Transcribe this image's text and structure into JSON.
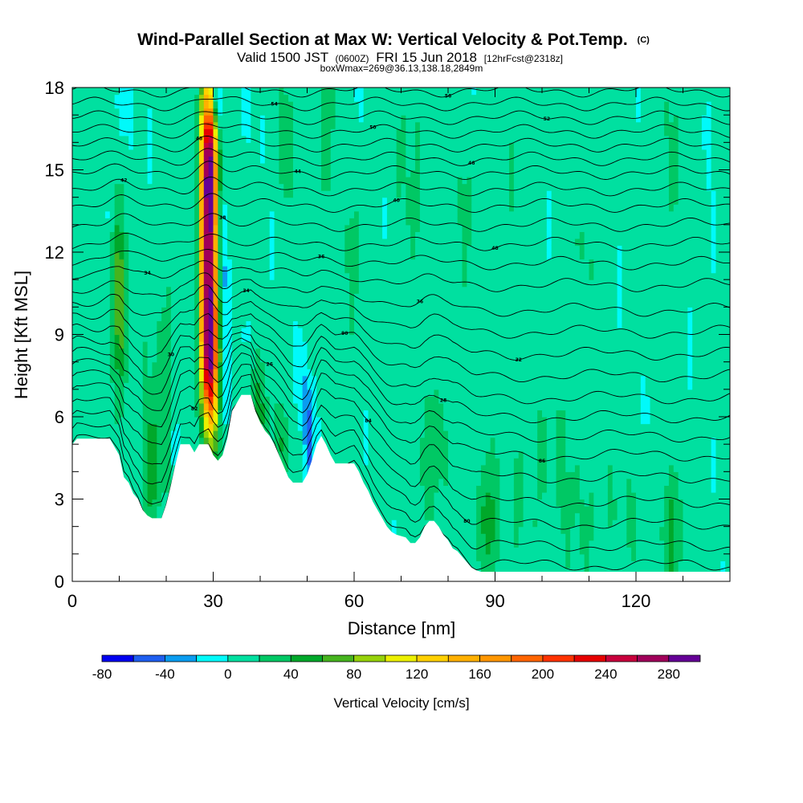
{
  "title": {
    "main": "Wind-Parallel Section at Max W: Vertical Velocity & Pot.Temp.",
    "copyright": "(C)",
    "valid_prefix": "Valid 1500 JST",
    "valid_utc": "(0600Z)",
    "valid_date": "FRI 15 Jun 2018",
    "forecast": "[12hrFcst@2318z]",
    "box_info": "boxWmax=269@36.13,138.18,2849m"
  },
  "colors": {
    "terrain": "#ffffff",
    "contour_line": "#000000"
  },
  "chart_data": {
    "type": "heatmap",
    "xlabel": "Distance [nm]",
    "ylabel": "Height [Kft MSL]",
    "xlim": [
      0,
      140
    ],
    "ylim": [
      0,
      18
    ],
    "x_ticks": [
      "0",
      "30",
      "60",
      "90",
      "120"
    ],
    "x_tick_values": [
      0,
      30,
      60,
      90,
      120
    ],
    "y_ticks": [
      "0",
      "3",
      "6",
      "9",
      "12",
      "15",
      "18"
    ],
    "y_tick_values": [
      0,
      3,
      6,
      9,
      12,
      15,
      18
    ],
    "background_value": 5,
    "terrain_profile": [
      [
        0,
        5.0
      ],
      [
        1,
        5.2
      ],
      [
        4,
        5.2
      ],
      [
        8,
        5.2
      ],
      [
        10,
        4.6
      ],
      [
        11,
        3.8
      ],
      [
        12,
        3.6
      ],
      [
        13,
        3.2
      ],
      [
        14,
        3.0
      ],
      [
        15,
        2.6
      ],
      [
        16,
        2.4
      ],
      [
        17,
        2.3
      ],
      [
        19,
        2.3
      ],
      [
        20,
        2.8
      ],
      [
        21,
        3.5
      ],
      [
        22,
        4.3
      ],
      [
        23,
        5.0
      ],
      [
        25,
        5.0
      ],
      [
        26,
        4.7
      ],
      [
        27,
        5.0
      ],
      [
        29,
        5.0
      ],
      [
        30,
        4.6
      ],
      [
        31,
        4.4
      ],
      [
        32,
        4.6
      ],
      [
        33,
        5.2
      ],
      [
        34,
        6.2
      ],
      [
        35,
        6.5
      ],
      [
        36,
        6.8
      ],
      [
        38,
        6.8
      ],
      [
        39,
        6.2
      ],
      [
        40,
        5.8
      ],
      [
        41,
        5.5
      ],
      [
        42,
        5.3
      ],
      [
        43,
        5.0
      ],
      [
        44,
        4.6
      ],
      [
        45,
        4.2
      ],
      [
        46,
        3.8
      ],
      [
        47,
        3.6
      ],
      [
        49,
        3.6
      ],
      [
        50,
        3.9
      ],
      [
        51,
        4.4
      ],
      [
        52,
        5.0
      ],
      [
        53,
        5.3
      ],
      [
        54,
        5.0
      ],
      [
        55,
        4.6
      ],
      [
        56,
        4.3
      ],
      [
        60,
        4.3
      ],
      [
        61,
        4.0
      ],
      [
        62,
        3.6
      ],
      [
        63,
        3.3
      ],
      [
        64,
        2.9
      ],
      [
        65,
        2.6
      ],
      [
        66,
        2.3
      ],
      [
        67,
        2.0
      ],
      [
        68,
        1.8
      ],
      [
        69,
        1.7
      ],
      [
        71,
        1.6
      ],
      [
        72,
        1.4
      ],
      [
        73,
        1.4
      ],
      [
        74,
        1.6
      ],
      [
        75,
        2.0
      ],
      [
        76,
        2.2
      ],
      [
        77,
        2.2
      ],
      [
        78,
        2.0
      ],
      [
        79,
        1.7
      ],
      [
        80,
        1.5
      ],
      [
        81,
        1.2
      ],
      [
        82,
        1.1
      ],
      [
        83,
        0.9
      ],
      [
        84,
        0.7
      ],
      [
        85,
        0.5
      ],
      [
        86,
        0.4
      ],
      [
        87,
        0.35
      ],
      [
        140,
        0.35
      ]
    ],
    "updraft_features": [
      {
        "x": 29.0,
        "z": 11.8,
        "sx": 1.4,
        "sz": 4.0,
        "amp": 269,
        "tilt": -0.05
      },
      {
        "x": 29.3,
        "z": 15.5,
        "sx": 1.1,
        "sz": 1.6,
        "amp": 120,
        "tilt": -0.05
      },
      {
        "x": 29.2,
        "z": 8.0,
        "sx": 1.3,
        "sz": 1.6,
        "amp": 110,
        "tilt": 0.0
      },
      {
        "x": 10.0,
        "z": 10.2,
        "sx": 1.2,
        "sz": 2.2,
        "amp": 75,
        "tilt": 0.0
      },
      {
        "x": 17.0,
        "z": 4.2,
        "sx": 1.6,
        "sz": 1.8,
        "amp": 45,
        "tilt": 0.0
      },
      {
        "x": 39.5,
        "z": 6.2,
        "sx": 1.3,
        "sz": 1.3,
        "amp": 45,
        "tilt": 0.0
      },
      {
        "x": 44.0,
        "z": 5.0,
        "sx": 1.2,
        "sz": 1.2,
        "amp": 30,
        "tilt": 0.0
      },
      {
        "x": 76.5,
        "z": 4.5,
        "sx": 1.8,
        "sz": 1.8,
        "amp": 35,
        "tilt": 0.0
      },
      {
        "x": 88.5,
        "z": 2.2,
        "sx": 1.4,
        "sz": 1.6,
        "amp": 45,
        "tilt": 0.0
      },
      {
        "x": 127.5,
        "z": 1.5,
        "sx": 0.9,
        "sz": 1.5,
        "amp": 50,
        "tilt": 0.0
      },
      {
        "x": 46.0,
        "z": 16.0,
        "sx": 2.0,
        "sz": 2.5,
        "amp": 20,
        "tilt": 0.0
      },
      {
        "x": 54.0,
        "z": 16.5,
        "sx": 2.0,
        "sz": 2.5,
        "amp": 18,
        "tilt": 0.0
      },
      {
        "x": 60.0,
        "z": 11.0,
        "sx": 3.0,
        "sz": 3.0,
        "amp": 16,
        "tilt": 0.0
      },
      {
        "x": 72.0,
        "z": 15.0,
        "sx": 3.0,
        "sz": 4.0,
        "amp": 16,
        "tilt": 0.0
      },
      {
        "x": 83.0,
        "z": 13.5,
        "sx": 2.5,
        "sz": 3.0,
        "amp": 14,
        "tilt": 0.0
      },
      {
        "x": 95.0,
        "z": 14.0,
        "sx": 3.0,
        "sz": 3.5,
        "amp": 12,
        "tilt": 0.0
      },
      {
        "x": 110.0,
        "z": 12.0,
        "sx": 3.0,
        "sz": 3.0,
        "amp": 12,
        "tilt": 0.0
      },
      {
        "x": 127.0,
        "z": 15.5,
        "sx": 3.0,
        "sz": 3.0,
        "amp": 14,
        "tilt": 0.0
      },
      {
        "x": 20.0,
        "z": 8.5,
        "sx": 4.0,
        "sz": 3.5,
        "amp": 15,
        "tilt": 0.0
      },
      {
        "x": 100.0,
        "z": 4.0,
        "sx": 8.0,
        "sz": 3.0,
        "amp": 14,
        "tilt": 0.0
      },
      {
        "x": 118.0,
        "z": 2.0,
        "sx": 10.0,
        "sz": 2.0,
        "amp": 12,
        "tilt": 0.0
      },
      {
        "x": 3.0,
        "z": 12.5,
        "sx": 2.0,
        "sz": 5.0,
        "amp": 12,
        "tilt": 0.0
      }
    ],
    "downdraft_features": [
      {
        "x": 26.5,
        "z": 11.5,
        "sx": 0.7,
        "sz": 3.0,
        "amp": -40,
        "tilt": 0.0
      },
      {
        "x": 32.0,
        "z": 11.0,
        "sx": 0.8,
        "sz": 2.0,
        "amp": -40,
        "tilt": 0.0
      },
      {
        "x": 30.8,
        "z": 17.5,
        "sx": 0.7,
        "sz": 0.8,
        "amp": -60,
        "tilt": 0.0
      },
      {
        "x": 50.3,
        "z": 5.5,
        "sx": 0.7,
        "sz": 1.6,
        "amp": -60,
        "tilt": -0.3
      },
      {
        "x": 22.0,
        "z": 5.0,
        "sx": 0.7,
        "sz": 0.8,
        "amp": -30,
        "tilt": 0.0
      },
      {
        "x": 33.0,
        "z": 7.0,
        "sx": 0.8,
        "sz": 1.2,
        "amp": -25,
        "tilt": 0.0
      },
      {
        "x": 11.0,
        "z": 17.5,
        "sx": 1.0,
        "sz": 1.0,
        "amp": -25,
        "tilt": 0.0
      }
    ],
    "theta_levels": [
      {
        "base_z": 0.6,
        "label": ""
      },
      {
        "base_z": 1.3,
        "label": ""
      },
      {
        "base_z": 2.1,
        "label": "80"
      },
      {
        "base_z": 2.9,
        "label": "82"
      },
      {
        "base_z": 3.8,
        "label": "84"
      },
      {
        "base_z": 4.6,
        "label": "86"
      },
      {
        "base_z": 5.3,
        "label": "26"
      },
      {
        "base_z": 6.0,
        "label": "28"
      },
      {
        "base_z": 6.7,
        "label": "30"
      },
      {
        "base_z": 7.5,
        "label": "90"
      },
      {
        "base_z": 8.3,
        "label": "32"
      },
      {
        "base_z": 9.1,
        "label": "34"
      },
      {
        "base_z": 9.9,
        "label": "36"
      },
      {
        "base_z": 10.8,
        "label": "34"
      },
      {
        "base_z": 11.6,
        "label": "36"
      },
      {
        "base_z": 12.3,
        "label": "48"
      },
      {
        "base_z": 13.0,
        "label": "38"
      },
      {
        "base_z": 13.7,
        "label": "40"
      },
      {
        "base_z": 14.3,
        "label": "42"
      },
      {
        "base_z": 14.9,
        "label": "44"
      },
      {
        "base_z": 15.4,
        "label": "46"
      },
      {
        "base_z": 15.9,
        "label": "48"
      },
      {
        "base_z": 16.4,
        "label": "50"
      },
      {
        "base_z": 16.9,
        "label": "52"
      },
      {
        "base_z": 17.4,
        "label": "54"
      },
      {
        "base_z": 17.9,
        "label": "56"
      }
    ],
    "colorbar": {
      "title": "Vertical Velocity [cm/s]",
      "levels": [
        -80,
        -60,
        -40,
        -20,
        0,
        20,
        40,
        60,
        80,
        100,
        120,
        140,
        160,
        180,
        200,
        220,
        240,
        260,
        280,
        300
      ],
      "colors": [
        "#0000f0",
        "#1e5ef0",
        "#0a9cf0",
        "#00fafa",
        "#00e0a0",
        "#00c864",
        "#00a82a",
        "#46b41e",
        "#96d20a",
        "#ecf000",
        "#ffd000",
        "#ffb000",
        "#ff9600",
        "#ff6400",
        "#ff3200",
        "#e60000",
        "#c8003c",
        "#a0005a",
        "#640096"
      ],
      "labels": [
        "-80",
        "-40",
        "0",
        "40",
        "80",
        "120",
        "160",
        "200",
        "240",
        "280"
      ],
      "label_values": [
        -80,
        -40,
        0,
        40,
        80,
        120,
        160,
        200,
        240,
        280
      ]
    }
  }
}
